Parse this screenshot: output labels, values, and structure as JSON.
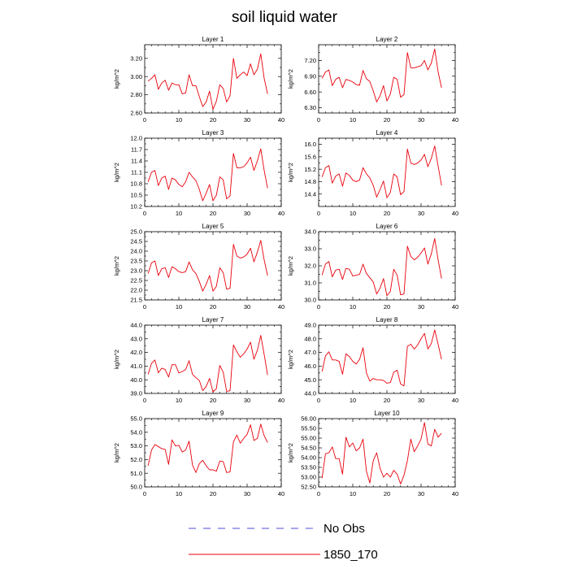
{
  "title": "soil liquid water",
  "legend": [
    {
      "label": "No Obs",
      "color": "#4b4bd8",
      "dash": true
    },
    {
      "label": "1850_170",
      "color": "#e8000b",
      "dash": false
    }
  ],
  "chart_data": [
    {
      "type": "line",
      "title": "Layer 1",
      "ylabel": "kg/m^2",
      "xlim": [
        0,
        40
      ],
      "xticks": [
        0,
        10,
        20,
        30,
        40
      ],
      "ylim": [
        2.6,
        3.35
      ],
      "yticks": [
        "2.60",
        "2.80",
        "3.00",
        "3.20"
      ],
      "color": "#e8000b",
      "x": [
        1,
        2,
        3,
        4,
        5,
        6,
        7,
        8,
        9,
        10,
        11,
        12,
        13,
        14,
        15,
        16,
        17,
        18,
        19,
        20,
        21,
        22,
        23,
        24,
        25,
        26,
        27,
        28,
        29,
        30,
        31,
        32,
        33,
        34,
        35,
        36
      ],
      "y": [
        2.95,
        2.98,
        3.02,
        2.86,
        2.93,
        2.96,
        2.85,
        2.93,
        2.91,
        2.91,
        2.81,
        2.82,
        3.02,
        2.9,
        2.9,
        2.78,
        2.67,
        2.72,
        2.84,
        2.64,
        2.73,
        2.91,
        2.87,
        2.72,
        2.79,
        3.2,
        2.98,
        3.02,
        3.05,
        3.01,
        3.14,
        3.02,
        3.08,
        3.25,
        2.98,
        2.81
      ]
    },
    {
      "type": "line",
      "title": "Layer 2",
      "ylabel": "kg/m^2",
      "xlim": [
        0,
        40
      ],
      "xticks": [
        0,
        10,
        20,
        30,
        40
      ],
      "ylim": [
        6.2,
        7.5
      ],
      "yticks": [
        "6.30",
        "6.60",
        "6.90",
        "7.20"
      ],
      "color": "#e8000b",
      "x": [
        1,
        2,
        3,
        4,
        5,
        6,
        7,
        8,
        9,
        10,
        11,
        12,
        13,
        14,
        15,
        16,
        17,
        18,
        19,
        20,
        21,
        22,
        23,
        24,
        25,
        26,
        27,
        28,
        29,
        30,
        31,
        32,
        33,
        34,
        35,
        36
      ],
      "y": [
        6.86,
        6.98,
        7.02,
        6.72,
        6.84,
        6.88,
        6.68,
        6.84,
        6.82,
        6.79,
        6.74,
        6.73,
        7.01,
        6.85,
        6.8,
        6.62,
        6.41,
        6.53,
        6.72,
        6.43,
        6.56,
        6.88,
        6.84,
        6.5,
        6.55,
        7.35,
        7.06,
        7.06,
        7.08,
        7.1,
        7.2,
        7.02,
        7.15,
        7.42,
        6.98,
        6.68
      ]
    },
    {
      "type": "line",
      "title": "Layer 3",
      "ylabel": "kg/m^2",
      "xlim": [
        0,
        40
      ],
      "xticks": [
        0,
        10,
        20,
        30,
        40
      ],
      "ylim": [
        10.2,
        12.0
      ],
      "yticks": [
        "10.2",
        "10.5",
        "10.8",
        "11.1",
        "11.4",
        "11.7",
        "12.0"
      ],
      "color": "#e8000b",
      "x": [
        1,
        2,
        3,
        4,
        5,
        6,
        7,
        8,
        9,
        10,
        11,
        12,
        13,
        14,
        15,
        16,
        17,
        18,
        19,
        20,
        21,
        22,
        23,
        24,
        25,
        26,
        27,
        28,
        29,
        30,
        31,
        32,
        33,
        34,
        35,
        36
      ],
      "y": [
        10.85,
        11.1,
        11.15,
        10.75,
        10.95,
        11.0,
        10.65,
        10.95,
        10.9,
        10.78,
        10.72,
        10.85,
        11.1,
        10.98,
        10.88,
        10.65,
        10.35,
        10.55,
        10.78,
        10.35,
        10.5,
        10.98,
        10.9,
        10.4,
        10.48,
        11.6,
        11.22,
        11.22,
        11.25,
        11.35,
        11.5,
        11.15,
        11.4,
        11.72,
        11.15,
        10.68
      ]
    },
    {
      "type": "line",
      "title": "Layer 4",
      "ylabel": "kg/m^2",
      "xlim": [
        0,
        40
      ],
      "xticks": [
        0,
        10,
        20,
        30,
        40
      ],
      "ylim": [
        14.0,
        16.2
      ],
      "yticks": [
        "14.4",
        "14.8",
        "15.2",
        "15.6",
        "16.0"
      ],
      "color": "#e8000b",
      "x": [
        1,
        2,
        3,
        4,
        5,
        6,
        7,
        8,
        9,
        10,
        11,
        12,
        13,
        14,
        15,
        16,
        17,
        18,
        19,
        20,
        21,
        22,
        23,
        24,
        25,
        26,
        27,
        28,
        29,
        30,
        31,
        32,
        33,
        34,
        35,
        36
      ],
      "y": [
        14.95,
        15.25,
        15.32,
        14.75,
        14.98,
        15.05,
        14.65,
        15.08,
        15.0,
        14.85,
        14.8,
        14.85,
        15.25,
        15.05,
        14.92,
        14.68,
        14.3,
        14.55,
        14.82,
        14.28,
        14.45,
        15.05,
        14.95,
        14.38,
        14.48,
        15.85,
        15.4,
        15.35,
        15.4,
        15.5,
        15.68,
        15.28,
        15.55,
        15.95,
        15.3,
        14.68
      ]
    },
    {
      "type": "line",
      "title": "Layer 5",
      "ylabel": "kg/m^2",
      "xlim": [
        0,
        40
      ],
      "xticks": [
        0,
        10,
        20,
        30,
        40
      ],
      "ylim": [
        21.5,
        25.0
      ],
      "yticks": [
        "21.5",
        "22.0",
        "22.5",
        "23.0",
        "23.5",
        "24.0",
        "24.5",
        "25.0"
      ],
      "color": "#e8000b",
      "x": [
        1,
        2,
        3,
        4,
        5,
        6,
        7,
        8,
        9,
        10,
        11,
        12,
        13,
        14,
        15,
        16,
        17,
        18,
        19,
        20,
        21,
        22,
        23,
        24,
        25,
        26,
        27,
        28,
        29,
        30,
        31,
        32,
        33,
        34,
        35,
        36
      ],
      "y": [
        22.85,
        23.4,
        23.5,
        22.75,
        23.1,
        23.15,
        22.65,
        23.2,
        23.1,
        22.95,
        22.9,
        22.95,
        23.45,
        23.05,
        22.85,
        22.45,
        21.95,
        22.3,
        22.75,
        21.95,
        22.2,
        23.15,
        22.9,
        22.05,
        22.1,
        24.35,
        23.75,
        23.65,
        23.7,
        23.85,
        24.15,
        23.45,
        23.95,
        24.55,
        23.55,
        22.75
      ]
    },
    {
      "type": "line",
      "title": "Layer 6",
      "ylabel": "kg/m^2",
      "xlim": [
        0,
        40
      ],
      "xticks": [
        0,
        10,
        20,
        30,
        40
      ],
      "ylim": [
        30.0,
        34.0
      ],
      "yticks": [
        "30.0",
        "31.0",
        "32.0",
        "33.0",
        "34.0"
      ],
      "color": "#e8000b",
      "x": [
        1,
        2,
        3,
        4,
        5,
        6,
        7,
        8,
        9,
        10,
        11,
        12,
        13,
        14,
        15,
        16,
        17,
        18,
        19,
        20,
        21,
        22,
        23,
        24,
        25,
        26,
        27,
        28,
        29,
        30,
        31,
        32,
        33,
        34,
        35,
        36
      ],
      "y": [
        31.45,
        32.1,
        32.25,
        31.35,
        31.75,
        31.8,
        31.2,
        31.85,
        31.8,
        31.4,
        31.45,
        31.5,
        32.1,
        31.55,
        31.3,
        31.05,
        30.35,
        30.7,
        31.25,
        30.25,
        30.5,
        31.8,
        31.45,
        30.3,
        30.35,
        33.15,
        32.55,
        32.35,
        32.5,
        32.75,
        33.05,
        32.1,
        32.7,
        33.6,
        32.35,
        31.25
      ]
    },
    {
      "type": "line",
      "title": "Layer 7",
      "ylabel": "kg/m^2",
      "xlim": [
        0,
        40
      ],
      "xticks": [
        0,
        10,
        20,
        30,
        40
      ],
      "ylim": [
        39.0,
        44.0
      ],
      "yticks": [
        "39.0",
        "40.0",
        "41.0",
        "42.0",
        "43.0",
        "44.0"
      ],
      "color": "#e8000b",
      "x": [
        1,
        2,
        3,
        4,
        5,
        6,
        7,
        8,
        9,
        10,
        11,
        12,
        13,
        14,
        15,
        16,
        17,
        18,
        19,
        20,
        21,
        22,
        23,
        24,
        25,
        26,
        27,
        28,
        29,
        30,
        31,
        32,
        33,
        34,
        35,
        36
      ],
      "y": [
        40.4,
        41.2,
        41.45,
        40.5,
        40.85,
        40.75,
        40.2,
        41.1,
        41.1,
        40.5,
        40.6,
        40.75,
        41.4,
        40.4,
        40.15,
        39.95,
        39.2,
        39.5,
        40.1,
        39.1,
        39.35,
        41.05,
        40.55,
        39.15,
        39.2,
        42.55,
        42.05,
        41.65,
        41.9,
        42.25,
        42.75,
        41.5,
        42.15,
        43.25,
        41.85,
        40.35
      ]
    },
    {
      "type": "line",
      "title": "Layer 8",
      "ylabel": "kg/m^2",
      "xlim": [
        0,
        40
      ],
      "xticks": [
        0,
        10,
        20,
        30,
        40
      ],
      "ylim": [
        44.0,
        49.0
      ],
      "yticks": [
        "44.0",
        "45.0",
        "46.0",
        "47.0",
        "48.0",
        "49.0"
      ],
      "color": "#e8000b",
      "x": [
        1,
        2,
        3,
        4,
        5,
        6,
        7,
        8,
        9,
        10,
        11,
        12,
        13,
        14,
        15,
        16,
        17,
        18,
        19,
        20,
        21,
        22,
        23,
        24,
        25,
        26,
        27,
        28,
        29,
        30,
        31,
        32,
        33,
        34,
        35,
        36
      ],
      "y": [
        45.6,
        46.75,
        47.05,
        46.45,
        46.45,
        46.35,
        45.4,
        46.9,
        46.7,
        46.35,
        46.15,
        46.5,
        47.35,
        45.5,
        44.9,
        45.1,
        45.0,
        45.0,
        44.95,
        44.75,
        44.8,
        45.55,
        45.7,
        44.7,
        44.55,
        47.45,
        47.6,
        47.25,
        47.55,
        48.0,
        48.4,
        47.25,
        47.65,
        48.65,
        47.6,
        46.5
      ]
    },
    {
      "type": "line",
      "title": "Layer 9",
      "ylabel": "kg/m^2",
      "xlim": [
        0,
        40
      ],
      "xticks": [
        0,
        10,
        20,
        30,
        40
      ],
      "ylim": [
        50.0,
        55.0
      ],
      "yticks": [
        "50.0",
        "51.0",
        "52.0",
        "53.0",
        "54.0",
        "55.0"
      ],
      "color": "#e8000b",
      "x": [
        1,
        2,
        3,
        4,
        5,
        6,
        7,
        8,
        9,
        10,
        11,
        12,
        13,
        14,
        15,
        16,
        17,
        18,
        19,
        20,
        21,
        22,
        23,
        24,
        25,
        26,
        27,
        28,
        29,
        30,
        31,
        32,
        33,
        34,
        35,
        36
      ],
      "y": [
        51.55,
        52.7,
        53.1,
        52.95,
        52.8,
        52.75,
        51.65,
        53.45,
        53.0,
        53.05,
        52.55,
        52.7,
        53.35,
        51.6,
        51.05,
        51.7,
        51.95,
        51.55,
        51.25,
        51.25,
        51.15,
        51.9,
        51.85,
        51.05,
        51.1,
        53.3,
        53.8,
        53.2,
        53.55,
        53.85,
        54.55,
        53.4,
        53.55,
        54.6,
        53.75,
        53.25
      ]
    },
    {
      "type": "line",
      "title": "Layer 10",
      "ylabel": "kg/m^2",
      "xlim": [
        0,
        40
      ],
      "xticks": [
        0,
        10,
        20,
        30,
        40
      ],
      "ylim": [
        52.5,
        56.0
      ],
      "yticks": [
        "52.50",
        "53.00",
        "53.50",
        "54.00",
        "54.50",
        "55.00",
        "55.50",
        "56.00"
      ],
      "color": "#e8000b",
      "x": [
        1,
        2,
        3,
        4,
        5,
        6,
        7,
        8,
        9,
        10,
        11,
        12,
        13,
        14,
        15,
        16,
        17,
        18,
        19,
        20,
        21,
        22,
        23,
        24,
        25,
        26,
        27,
        28,
        29,
        30,
        31,
        32,
        33,
        34,
        35,
        36
      ],
      "y": [
        52.95,
        54.2,
        54.25,
        54.55,
        53.95,
        53.95,
        53.15,
        55.05,
        54.55,
        54.75,
        54.35,
        54.5,
        54.95,
        53.3,
        52.7,
        53.85,
        54.25,
        53.45,
        53.0,
        53.2,
        53.0,
        53.35,
        53.15,
        52.65,
        53.1,
        53.85,
        54.95,
        54.3,
        54.6,
        54.95,
        55.8,
        54.7,
        54.6,
        55.45,
        55.05,
        55.25
      ]
    }
  ]
}
